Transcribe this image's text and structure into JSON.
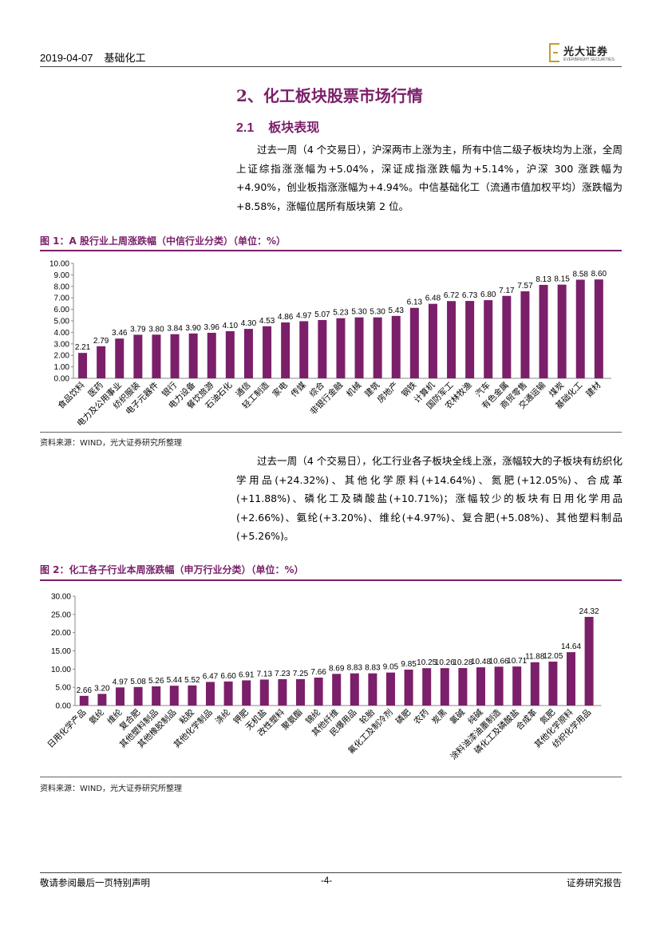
{
  "header": {
    "date": "2019-04-07",
    "category": "基础化工",
    "brand": "光大证券",
    "brand_en": "EVERBRIGHT SECURITIES"
  },
  "section": {
    "title": "2、化工板块股票市场行情",
    "sub_num": "2.1",
    "sub_title": "板块表现"
  },
  "paragraph1": "过去一周（4 个交易日），沪深两市上涨为主，所有中信二级子板块均为上涨，全周上证综指涨涨幅为+5.04%，深证成指涨跌幅为+5.14%，沪深 300 涨跌幅为+4.90%，创业板指涨涨幅为+4.94%。中信基础化工（流通市值加权平均）涨跌幅为+8.58%，涨幅位居所有版块第 2 位。",
  "paragraph2": "过去一周（4 个交易日），化工行业各子板块全线上涨，涨幅较大的子板块有纺织化学用品(+24.32%)、其他化学原料(+14.64%)、氮肥(+12.05%)、合成革(+11.88%)、磷化工及磷酸盐(+10.71%)；涨幅较少的板块有日用化学用品(+2.66%)、氨纶(+3.20%)、维纶(+4.97%)、复合肥(+5.08%)、其他塑料制品(+5.26%)。",
  "figure1": {
    "title": "图 1：A 股行业上周涨跌幅（中信行业分类）（单位：%）",
    "source": "资料来源：WIND，光大证券研究所整理"
  },
  "figure2": {
    "title": "图 2：化工各子行业本周涨跌幅（申万行业分类）（单位：%）",
    "source": "资料来源：WIND，光大证券研究所整理"
  },
  "footer": {
    "left": "敬请参阅最后一页特别声明",
    "page": "-4-",
    "right": "证券研究报告"
  },
  "colors": {
    "accent": "#7b1f6a",
    "bar": "#7b1f6a"
  },
  "chart_data": [
    {
      "type": "bar",
      "title": "A 股行业上周涨跌幅（中信行业分类）（单位：%）",
      "categories": [
        "食品饮料",
        "医药",
        "电力及公用事业",
        "纺织服装",
        "电子元器件",
        "银行",
        "电力设备",
        "餐饮旅游",
        "石油石化",
        "通信",
        "轻工制造",
        "家电",
        "传媒",
        "综合",
        "非银行金融",
        "机械",
        "建筑",
        "房地产",
        "钢铁",
        "计算机",
        "国防军工",
        "农林牧渔",
        "汽车",
        "有色金属",
        "商贸零售",
        "交通运输",
        "煤炭",
        "基础化工",
        "建材"
      ],
      "values": [
        2.21,
        2.79,
        3.46,
        3.79,
        3.8,
        3.84,
        3.9,
        3.96,
        4.1,
        4.3,
        4.53,
        4.86,
        4.97,
        5.07,
        5.23,
        5.3,
        5.3,
        5.43,
        6.13,
        6.48,
        6.72,
        6.73,
        6.8,
        7.17,
        7.57,
        8.13,
        8.15,
        8.58,
        8.6
      ],
      "labels": [
        "2.21",
        "2.79",
        "3.46",
        "3.79",
        "3.80",
        "3.84",
        "3.90",
        "3.96",
        "4.10",
        "4.30",
        "4.53",
        "4.86",
        "4.97",
        "5.07",
        "5.23",
        "5.30",
        "5.30",
        "5.43",
        "6.13",
        "6.48",
        "6.72",
        "6.73",
        "6.80",
        "7.17",
        "7.57",
        "8.13",
        "8.15",
        "8.58",
        "8.60"
      ],
      "yticks": [
        "0.00",
        "1.00",
        "2.00",
        "3.00",
        "4.00",
        "5.00",
        "6.00",
        "7.00",
        "8.00",
        "9.00",
        "10.00"
      ],
      "ylim": [
        0,
        10
      ]
    },
    {
      "type": "bar",
      "title": "化工各子行业本周涨跌幅（申万行业分类）（单位：%）",
      "categories": [
        "日用化学产品",
        "氨纶",
        "维纶",
        "复合肥",
        "其他塑料制品",
        "其他橡胶制品",
        "粘胶",
        "其他化学制品",
        "涤纶",
        "钾肥",
        "无机盐",
        "改性塑料",
        "聚氨酯",
        "锦纶",
        "其他纤维",
        "民爆用品",
        "轮胎",
        "氟化工及制冷剂",
        "磷肥",
        "农药",
        "炭黑",
        "氯碱",
        "纯碱",
        "涂料油漆油墨制造",
        "磷化工及磷酸盐",
        "合成革",
        "氮肥",
        "其他化学原料",
        "纺织化学用品"
      ],
      "values": [
        2.66,
        3.2,
        4.97,
        5.08,
        5.26,
        5.44,
        5.52,
        6.47,
        6.6,
        6.91,
        7.13,
        7.23,
        7.25,
        7.66,
        8.69,
        8.83,
        8.83,
        9.05,
        9.85,
        10.25,
        10.26,
        10.28,
        10.48,
        10.66,
        10.71,
        11.88,
        12.05,
        14.64,
        24.32
      ],
      "labels": [
        "2.66",
        "3.20",
        "4.97",
        "5.08",
        "5.26",
        "5.44",
        "5.52",
        "6.47",
        "6.60",
        "6.91",
        "7.13",
        "7.23",
        "7.25",
        "7.66",
        "8.69",
        "8.83",
        "8.83",
        "9.05",
        "9.85",
        "10.25",
        "10.26",
        "10.28",
        "10.48",
        "10.66",
        "10.71",
        "11.88",
        "12.05",
        "14.64",
        "24.32"
      ],
      "yticks": [
        "0.00",
        "5.00",
        "10.00",
        "15.00",
        "20.00",
        "25.00",
        "30.00"
      ],
      "ylim": [
        0,
        30
      ]
    }
  ]
}
